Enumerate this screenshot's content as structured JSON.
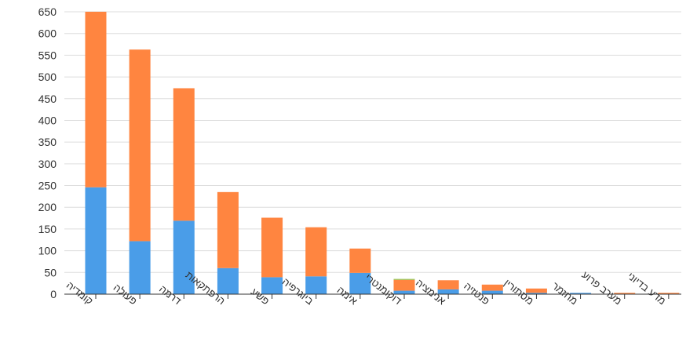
{
  "chart_data": {
    "type": "bar",
    "stacked": true,
    "categories": [
      "קומדיה",
      "פעולה",
      "דרמה",
      "הרפתקאות",
      "פשע",
      "ביוגרפיה",
      "אימה",
      "דוקומנטרי",
      "אנימציה",
      "פנטזיה",
      "מסתורין",
      "מחזמר",
      "מערב פרוע",
      "מדע בדיוני"
    ],
    "series": [
      {
        "color": "#4a9de8",
        "values": [
          246,
          122,
          169,
          60,
          39,
          41,
          49,
          8,
          11,
          8,
          3,
          3,
          0,
          0
        ]
      },
      {
        "color": "#ff8540",
        "values": [
          404,
          441,
          305,
          175,
          137,
          113,
          56,
          25,
          21,
          14,
          10,
          0,
          3,
          3
        ]
      },
      {
        "color": "#8bc34a",
        "values": [
          0,
          0,
          0,
          0,
          0,
          0,
          0,
          2,
          0,
          0,
          0,
          0,
          0,
          0
        ]
      }
    ],
    "yticks": [
      0,
      50,
      100,
      150,
      200,
      250,
      300,
      350,
      400,
      450,
      500,
      550,
      600,
      650
    ],
    "ylim": [
      0,
      650
    ],
    "title": "",
    "xlabel": "",
    "ylabel": "",
    "grid": true,
    "legend": "none"
  }
}
